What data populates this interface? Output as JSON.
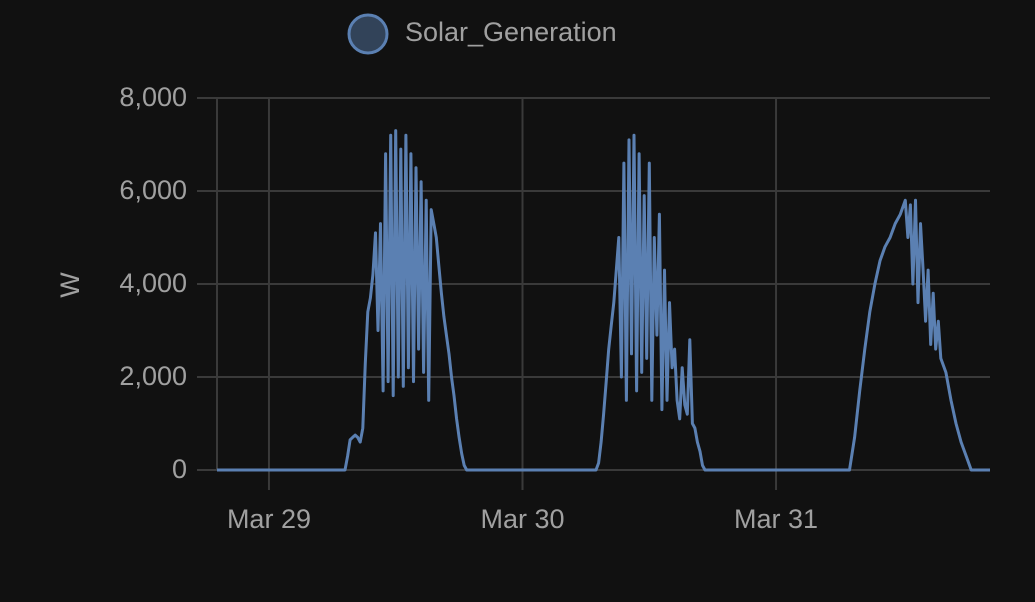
{
  "chart_data": {
    "type": "line",
    "ylabel": "W",
    "ylim": [
      0,
      8000
    ],
    "yticks": [
      0,
      {
        "value": 2000,
        "label": "2,000"
      },
      {
        "value": 4000,
        "label": "4,000"
      },
      {
        "value": 6000,
        "label": "6,000"
      },
      {
        "value": 8000,
        "label": "8,000"
      }
    ],
    "xlim": [
      28.795,
      31.844
    ],
    "xticks": [
      {
        "value": 29,
        "label": "Mar 29"
      },
      {
        "value": 30,
        "label": "Mar 30"
      },
      {
        "value": 31,
        "label": "Mar 31"
      }
    ],
    "grid": true,
    "legend": "top",
    "series": [
      {
        "name": "Solar_Generation",
        "color": "#5b80b2",
        "x": [
          28.795,
          29.3,
          29.31,
          29.32,
          29.33,
          29.34,
          29.35,
          29.36,
          29.37,
          29.38,
          29.39,
          29.4,
          29.41,
          29.42,
          29.43,
          29.44,
          29.45,
          29.46,
          29.47,
          29.48,
          29.49,
          29.5,
          29.51,
          29.52,
          29.53,
          29.54,
          29.55,
          29.56,
          29.57,
          29.58,
          29.59,
          29.6,
          29.61,
          29.62,
          29.63,
          29.64,
          29.65,
          29.66,
          29.67,
          29.68,
          29.69,
          29.7,
          29.71,
          29.72,
          29.73,
          29.74,
          29.75,
          29.76,
          29.77,
          29.78,
          30.29,
          30.3,
          30.31,
          30.32,
          30.33,
          30.34,
          30.35,
          30.36,
          30.37,
          30.38,
          30.39,
          30.4,
          30.41,
          30.42,
          30.43,
          30.44,
          30.45,
          30.46,
          30.47,
          30.48,
          30.49,
          30.5,
          30.51,
          30.52,
          30.53,
          30.54,
          30.55,
          30.56,
          30.57,
          30.58,
          30.59,
          30.6,
          30.61,
          30.62,
          30.63,
          30.64,
          30.65,
          30.66,
          30.67,
          30.68,
          30.69,
          30.7,
          30.71,
          30.72,
          31.29,
          31.31,
          31.33,
          31.35,
          31.37,
          31.39,
          31.41,
          31.43,
          31.45,
          31.47,
          31.49,
          31.51,
          31.52,
          31.53,
          31.54,
          31.55,
          31.56,
          31.57,
          31.58,
          31.59,
          31.6,
          31.61,
          31.62,
          31.63,
          31.64,
          31.65,
          31.67,
          31.69,
          31.71,
          31.73,
          31.75,
          31.77,
          31.844
        ],
        "values": [
          0,
          0,
          300,
          650,
          700,
          750,
          700,
          600,
          900,
          2300,
          3400,
          3700,
          4200,
          5100,
          3000,
          5300,
          1700,
          6800,
          1900,
          7200,
          1600,
          7300,
          2000,
          6900,
          1800,
          7200,
          2200,
          6800,
          1900,
          6500,
          2600,
          6200,
          2100,
          5800,
          1500,
          5600,
          5300,
          5000,
          4400,
          3800,
          3300,
          2900,
          2500,
          2000,
          1600,
          1100,
          700,
          350,
          100,
          0,
          0,
          150,
          600,
          1200,
          1900,
          2600,
          3100,
          3600,
          4300,
          5000,
          2000,
          6600,
          1500,
          7100,
          2500,
          7200,
          1700,
          6800,
          2100,
          5900,
          2400,
          6600,
          1500,
          5000,
          2900,
          5500,
          1300,
          4300,
          1500,
          3600,
          2200,
          2600,
          1500,
          1100,
          2200,
          1400,
          1200,
          2800,
          1000,
          900,
          600,
          400,
          100,
          0,
          0,
          700,
          1700,
          2600,
          3400,
          4000,
          4500,
          4800,
          5000,
          5300,
          5500,
          5800,
          5000,
          5700,
          4000,
          5800,
          3600,
          5300,
          4300,
          3200,
          4300,
          2700,
          3800,
          2600,
          3200,
          2400,
          2100,
          1500,
          1000,
          600,
          300,
          0,
          0
        ]
      }
    ]
  }
}
